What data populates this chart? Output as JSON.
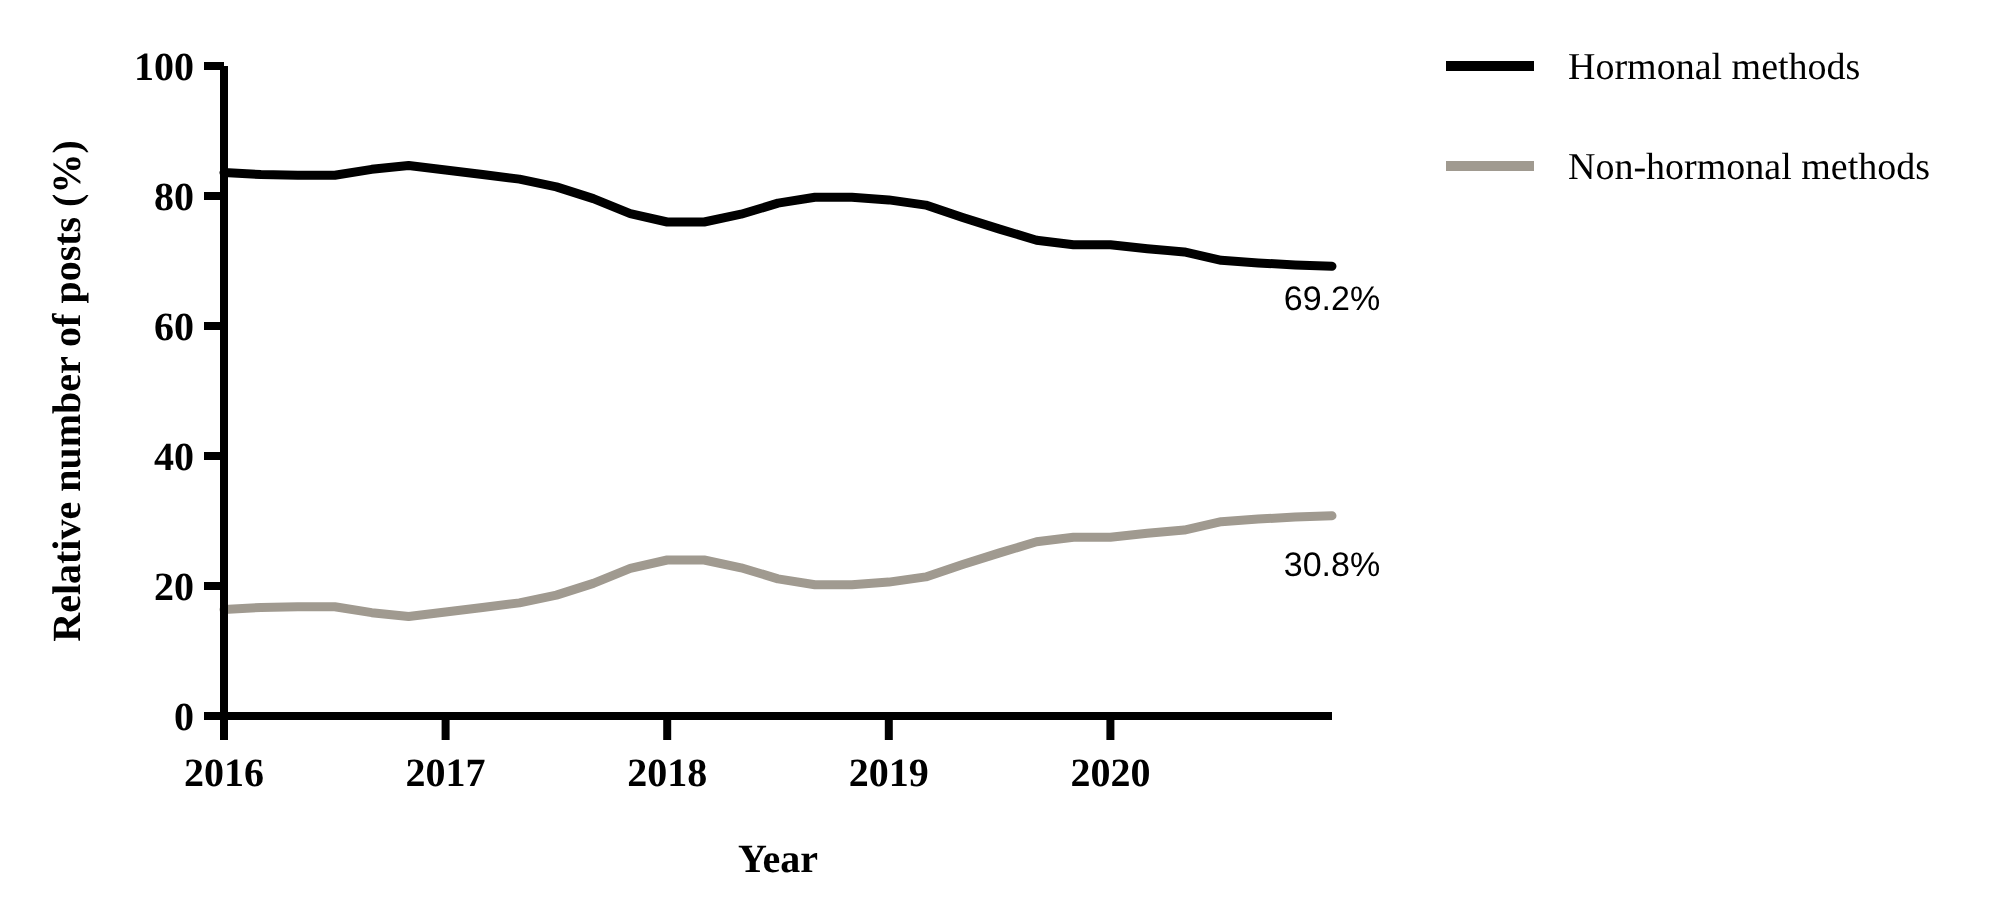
{
  "chart_data": {
    "type": "line",
    "xlabel": "Year",
    "ylabel": "Relative number of posts (%)",
    "x": [
      2016,
      2016.1667,
      2016.3333,
      2016.5,
      2016.6667,
      2016.8333,
      2017,
      2017.1667,
      2017.3333,
      2017.5,
      2017.6667,
      2017.8333,
      2018,
      2018.1667,
      2018.3333,
      2018.5,
      2018.6667,
      2018.8333,
      2019,
      2019.1667,
      2019.3333,
      2019.5,
      2019.6667,
      2019.8333,
      2020,
      2020.1667,
      2020.3333,
      2020.5,
      2020.6667,
      2020.8333,
      2021
    ],
    "series": [
      {
        "name": "Hormonal methods",
        "color": "#000000",
        "values": [
          83.6,
          83.3,
          83.2,
          83.2,
          84.1,
          84.7,
          84.0,
          83.3,
          82.6,
          81.4,
          79.6,
          77.3,
          76.0,
          76.0,
          77.2,
          78.9,
          79.8,
          79.8,
          79.4,
          78.6,
          76.7,
          74.9,
          73.2,
          72.5,
          72.5,
          71.9,
          71.4,
          70.1,
          69.7,
          69.4,
          69.2
        ],
        "value_labels": [
          null,
          null,
          null,
          null,
          null,
          null,
          null,
          null,
          null,
          null,
          null,
          null,
          null,
          null,
          null,
          null,
          null,
          null,
          null,
          null,
          null,
          null,
          null,
          null,
          null,
          null,
          null,
          null,
          null,
          null,
          "69.2%"
        ]
      },
      {
        "name": "Non-hormonal methods",
        "color": "#a09a90",
        "values": [
          16.4,
          16.7,
          16.8,
          16.8,
          15.9,
          15.3,
          16.0,
          16.7,
          17.4,
          18.6,
          20.4,
          22.7,
          24.0,
          24.0,
          22.8,
          21.1,
          20.2,
          20.2,
          20.6,
          21.4,
          23.3,
          25.1,
          26.8,
          27.5,
          27.5,
          28.1,
          28.6,
          29.9,
          30.3,
          30.6,
          30.8
        ],
        "value_labels": [
          null,
          null,
          null,
          null,
          null,
          null,
          null,
          null,
          null,
          null,
          null,
          null,
          null,
          null,
          null,
          null,
          null,
          null,
          null,
          null,
          null,
          null,
          null,
          null,
          null,
          null,
          null,
          null,
          null,
          null,
          "30.8%"
        ]
      }
    ],
    "xlim": [
      2016,
      2021
    ],
    "xticks": [
      2016,
      2017,
      2018,
      2019,
      2020
    ],
    "ylim": [
      0,
      100
    ],
    "yticks": [
      0,
      20,
      40,
      60,
      80,
      100
    ],
    "grid": false,
    "legend": "top right",
    "marker": "none",
    "line_style": "solid"
  }
}
